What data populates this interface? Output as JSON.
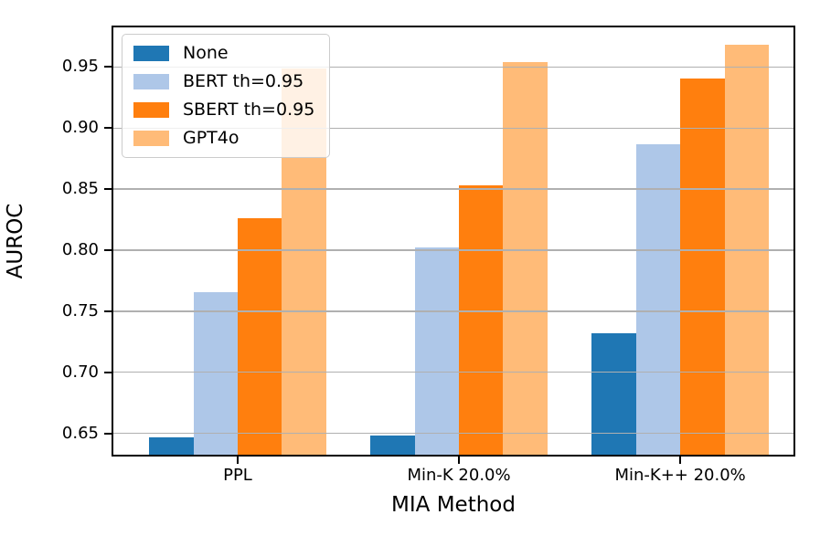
{
  "chart_data": {
    "type": "bar",
    "title": "",
    "xlabel": "MIA Method",
    "ylabel": "AUROC",
    "categories": [
      "PPL",
      "Min-K 20.0%",
      "Min-K++ 20.0%"
    ],
    "series": [
      {
        "name": "None",
        "color": "#1f77b4",
        "values": [
          0.647,
          0.648,
          0.732
        ]
      },
      {
        "name": "BERT th=0.95",
        "color": "#aec7e8",
        "values": [
          0.766,
          0.802,
          0.887
        ]
      },
      {
        "name": "SBERT th=0.95",
        "color": "#ff7f0e",
        "values": [
          0.826,
          0.853,
          0.941
        ]
      },
      {
        "name": "GPT4o",
        "color": "#ffbb78",
        "values": [
          0.949,
          0.954,
          0.968
        ]
      }
    ],
    "yticks": [
      0.65,
      0.7,
      0.75,
      0.8,
      0.85,
      0.9,
      0.95
    ],
    "ytick_labels": [
      "0.65",
      "0.70",
      "0.75",
      "0.80",
      "0.85",
      "0.90",
      "0.95"
    ],
    "ylim": [
      0.631,
      0.984
    ],
    "xlim": [
      -0.57,
      2.52
    ],
    "bar_width": 0.2,
    "grid": true,
    "grid_color": "#b0b0b0",
    "grid_above_bars": true,
    "legend_position": "upper-left",
    "legend": [
      "None",
      "BERT th=0.95",
      "SBERT th=0.95",
      "GPT4o"
    ],
    "axis_color": "#000000",
    "background_color": "#ffffff"
  }
}
